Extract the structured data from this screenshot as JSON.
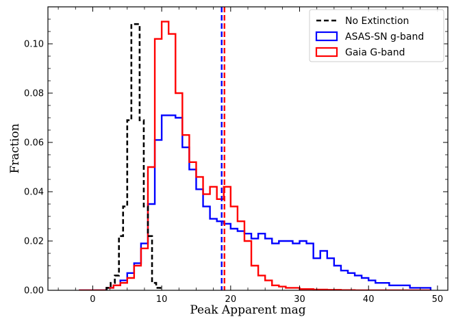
{
  "chart_data": {
    "type": "histogram",
    "xlabel": "Peak Apparent mag",
    "ylabel": "Fraction",
    "xlim": [
      -6.5,
      51.5
    ],
    "ylim": [
      0,
      0.115
    ],
    "xticks": [
      0,
      10,
      20,
      30,
      40,
      50
    ],
    "yticks": [
      0.0,
      0.02,
      0.04,
      0.06,
      0.08,
      0.1
    ],
    "xtick_labels": [
      "0",
      "10",
      "20",
      "30",
      "40",
      "50"
    ],
    "ytick_labels": [
      "0.00",
      "0.02",
      "0.04",
      "0.06",
      "0.08",
      "0.10"
    ],
    "legend_position": "top-right",
    "series": [
      {
        "name": "No Extinction",
        "style": "dashed",
        "color": "#000000",
        "bin_edges": [
          2.0,
          2.6,
          3.2,
          3.8,
          4.4,
          5.0,
          5.6,
          6.2,
          6.8,
          7.4,
          8.0,
          8.6,
          9.2,
          9.8
        ],
        "values": [
          0.001,
          0.003,
          0.006,
          0.022,
          0.034,
          0.069,
          0.108,
          0.108,
          0.069,
          0.034,
          0.022,
          0.003,
          0.001
        ]
      },
      {
        "name": "ASAS-SN g-band",
        "style": "solid",
        "color": "#0000ff",
        "bin_edges": [
          -2,
          -1,
          0,
          1,
          2,
          3,
          4,
          5,
          6,
          7,
          8,
          9,
          10,
          11,
          12,
          13,
          14,
          15,
          16,
          17,
          18,
          19,
          20,
          21,
          22,
          23,
          24,
          25,
          26,
          27,
          28,
          29,
          30,
          31,
          32,
          33,
          34,
          35,
          36,
          37,
          38,
          39,
          40,
          41,
          42,
          43,
          44,
          45,
          46,
          47,
          48,
          49
        ],
        "values": [
          0.0,
          0.0,
          0.0,
          0.0,
          0.001,
          0.002,
          0.004,
          0.007,
          0.011,
          0.019,
          0.035,
          0.061,
          0.071,
          0.071,
          0.07,
          0.058,
          0.049,
          0.041,
          0.034,
          0.029,
          0.028,
          0.027,
          0.025,
          0.024,
          0.023,
          0.021,
          0.023,
          0.021,
          0.019,
          0.02,
          0.02,
          0.019,
          0.02,
          0.019,
          0.013,
          0.016,
          0.013,
          0.01,
          0.008,
          0.007,
          0.006,
          0.005,
          0.004,
          0.003,
          0.003,
          0.002,
          0.002,
          0.002,
          0.001,
          0.001,
          0.001
        ]
      },
      {
        "name": "Gaia G-band",
        "style": "solid",
        "color": "#ff0000",
        "bin_edges": [
          -2,
          -1,
          0,
          1,
          2,
          3,
          4,
          5,
          6,
          7,
          8,
          9,
          10,
          11,
          12,
          13,
          14,
          15,
          16,
          17,
          18,
          19,
          20,
          21,
          22,
          23,
          24,
          25,
          26,
          27,
          28,
          29,
          30,
          31,
          32,
          33,
          34,
          35,
          36,
          37,
          38,
          39,
          40,
          41,
          42,
          43,
          44,
          45,
          46,
          47,
          48,
          49
        ],
        "values": [
          0.0,
          0.0,
          0.0,
          0.0,
          0.001,
          0.002,
          0.003,
          0.005,
          0.01,
          0.017,
          0.05,
          0.102,
          0.109,
          0.104,
          0.08,
          0.063,
          0.052,
          0.046,
          0.039,
          0.042,
          0.037,
          0.042,
          0.034,
          0.028,
          0.02,
          0.01,
          0.006,
          0.004,
          0.002,
          0.0015,
          0.001,
          0.001,
          0.0005,
          0.0005,
          0.0003,
          0.0003,
          0.0002,
          0.0002,
          0.0001,
          0.0001,
          0.0,
          0.0,
          0.0,
          0.0,
          0.0,
          0.0,
          0.0,
          0.0,
          0.0,
          0.0,
          0.0
        ]
      }
    ],
    "vertical_lines": [
      {
        "x": 18.7,
        "color": "#0000ff",
        "style": "dashed",
        "series": "ASAS-SN g-band median"
      },
      {
        "x": 19.1,
        "color": "#ff0000",
        "style": "dashed",
        "series": "Gaia G-band median"
      }
    ]
  }
}
